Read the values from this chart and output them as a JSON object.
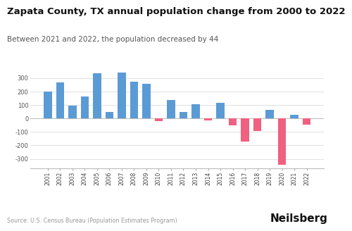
{
  "title": "Zapata County, TX annual population change from 2000 to 2022",
  "subtitle": "Between 2021 and 2022, the population decreased by 44",
  "source": "Source: U.S. Census Bureau (Population Estimates Program)",
  "branding": "Neilsberg",
  "years": [
    2001,
    2002,
    2003,
    2004,
    2005,
    2006,
    2007,
    2008,
    2009,
    2010,
    2011,
    2012,
    2013,
    2014,
    2015,
    2016,
    2017,
    2018,
    2019,
    2020,
    2021,
    2022
  ],
  "values": [
    200,
    270,
    93,
    163,
    335,
    48,
    340,
    275,
    257,
    -18,
    137,
    47,
    105,
    -15,
    115,
    -50,
    -170,
    -95,
    65,
    -345,
    28,
    -44
  ],
  "positive_color": "#5b9bd5",
  "negative_color": "#f06080",
  "background_color": "#ffffff",
  "yticks": [
    -300,
    -200,
    -100,
    0,
    100,
    200,
    300
  ],
  "ylim": [
    -370,
    390
  ],
  "title_fontsize": 9.5,
  "subtitle_fontsize": 7.5,
  "source_fontsize": 5.8,
  "branding_fontsize": 11
}
